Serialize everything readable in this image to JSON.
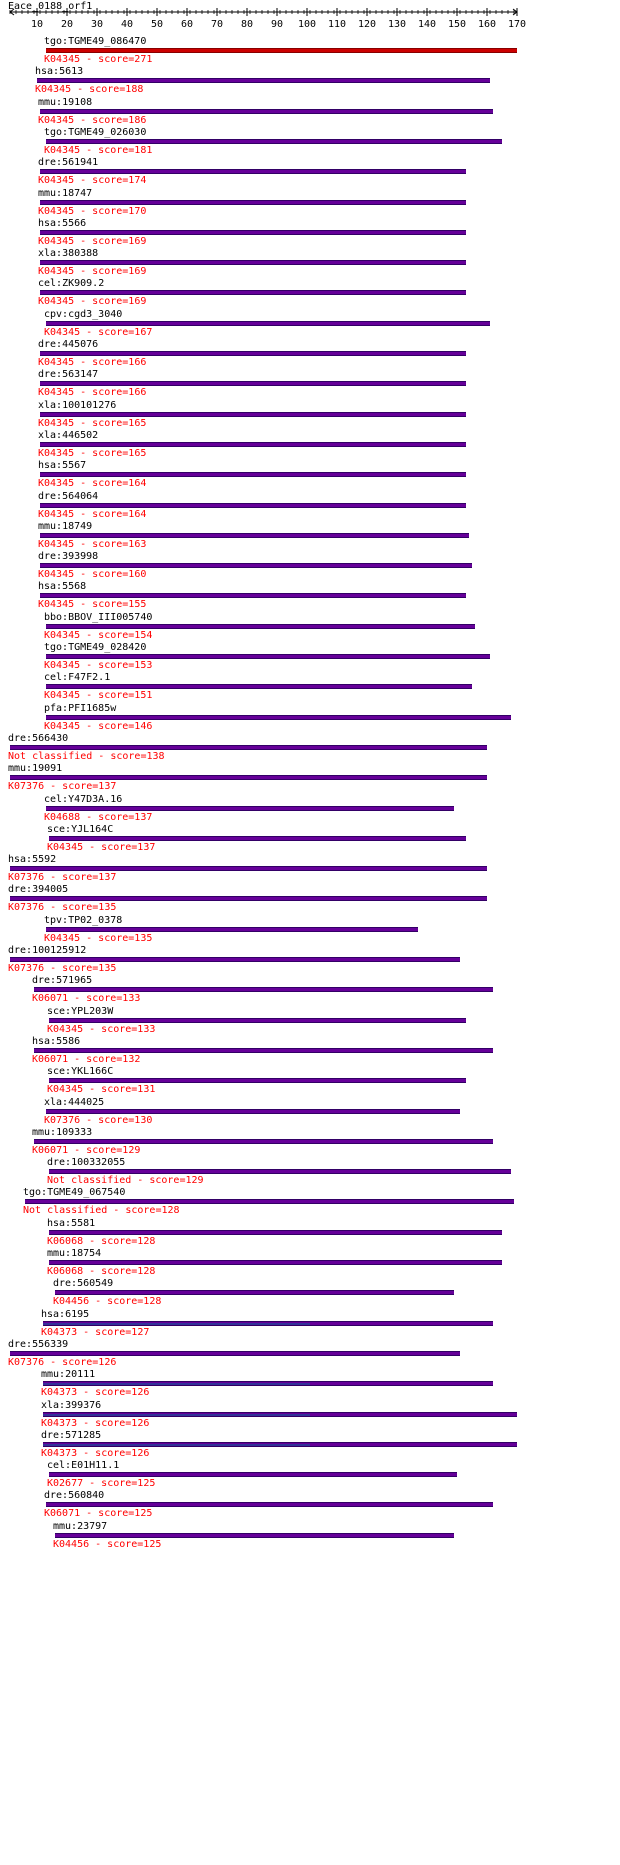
{
  "query_name": "Eace_0188_orf1",
  "ticks": [
    "10",
    "20",
    "30",
    "40",
    "50",
    "60",
    "70",
    "80",
    "90",
    "100",
    "110",
    "120",
    "130",
    "140",
    "150",
    "160",
    "170"
  ],
  "hits": [
    {
      "name": "tgo:TGME49_086470",
      "label": "K04345 - score=271",
      "start": 13,
      "end": 170,
      "top": true
    },
    {
      "name": "hsa:5613",
      "label": "K04345 - score=188",
      "start": 10,
      "end": 161
    },
    {
      "name": "mmu:19108",
      "label": "K04345 - score=186",
      "start": 11,
      "end": 162
    },
    {
      "name": "tgo:TGME49_026030",
      "label": "K04345 - score=181",
      "start": 13,
      "end": 165
    },
    {
      "name": "dre:561941",
      "label": "K04345 - score=174",
      "start": 11,
      "end": 153
    },
    {
      "name": "mmu:18747",
      "label": "K04345 - score=170",
      "start": 11,
      "end": 153
    },
    {
      "name": "hsa:5566",
      "label": "K04345 - score=169",
      "start": 11,
      "end": 153
    },
    {
      "name": "xla:380388",
      "label": "K04345 - score=169",
      "start": 11,
      "end": 153
    },
    {
      "name": "cel:ZK909.2",
      "label": "K04345 - score=169",
      "start": 11,
      "end": 153
    },
    {
      "name": "cpv:cgd3_3040",
      "label": "K04345 - score=167",
      "start": 13,
      "end": 161
    },
    {
      "name": "dre:445076",
      "label": "K04345 - score=166",
      "start": 11,
      "end": 153
    },
    {
      "name": "dre:563147",
      "label": "K04345 - score=166",
      "start": 11,
      "end": 153
    },
    {
      "name": "xla:100101276",
      "label": "K04345 - score=165",
      "start": 11,
      "end": 153
    },
    {
      "name": "xla:446502",
      "label": "K04345 - score=165",
      "start": 11,
      "end": 153
    },
    {
      "name": "hsa:5567",
      "label": "K04345 - score=164",
      "start": 11,
      "end": 153
    },
    {
      "name": "dre:564064",
      "label": "K04345 - score=164",
      "start": 11,
      "end": 153
    },
    {
      "name": "mmu:18749",
      "label": "K04345 - score=163",
      "start": 11,
      "end": 154
    },
    {
      "name": "dre:393998",
      "label": "K04345 - score=160",
      "start": 11,
      "end": 155
    },
    {
      "name": "hsa:5568",
      "label": "K04345 - score=155",
      "start": 11,
      "end": 153
    },
    {
      "name": "bbo:BBOV_III005740",
      "label": "K04345 - score=154",
      "start": 13,
      "end": 156
    },
    {
      "name": "tgo:TGME49_028420",
      "label": "K04345 - score=153",
      "start": 13,
      "end": 161
    },
    {
      "name": "cel:F47F2.1",
      "label": "K04345 - score=151",
      "start": 13,
      "end": 155
    },
    {
      "name": "pfa:PFI1685w",
      "label": "K04345 - score=146",
      "start": 13,
      "end": 168
    },
    {
      "name": "dre:566430",
      "label": "Not classified - score=138",
      "start": 1,
      "end": 160
    },
    {
      "name": "mmu:19091",
      "label": "K07376 - score=137",
      "start": 1,
      "end": 160
    },
    {
      "name": "cel:Y47D3A.16",
      "label": "K04688 - score=137",
      "start": 13,
      "end": 149
    },
    {
      "name": "sce:YJL164C",
      "label": "K04345 - score=137",
      "start": 14,
      "end": 153
    },
    {
      "name": "hsa:5592",
      "label": "K07376 - score=137",
      "start": 1,
      "end": 160
    },
    {
      "name": "dre:394005",
      "label": "K07376 - score=135",
      "start": 1,
      "end": 160
    },
    {
      "name": "tpv:TP02_0378",
      "label": "K04345 - score=135",
      "start": 13,
      "end": 137
    },
    {
      "name": "dre:100125912",
      "label": "K07376 - score=135",
      "start": 1,
      "end": 151
    },
    {
      "name": "dre:571965",
      "label": "K06071 - score=133",
      "start": 9,
      "end": 162
    },
    {
      "name": "sce:YPL203W",
      "label": "K04345 - score=133",
      "start": 14,
      "end": 153
    },
    {
      "name": "hsa:5586",
      "label": "K06071 - score=132",
      "start": 9,
      "end": 162
    },
    {
      "name": "sce:YKL166C",
      "label": "K04345 - score=131",
      "start": 14,
      "end": 153
    },
    {
      "name": "xla:444025",
      "label": "K07376 - score=130",
      "start": 13,
      "end": 151
    },
    {
      "name": "mmu:109333",
      "label": "K06071 - score=129",
      "start": 9,
      "end": 162
    },
    {
      "name": "dre:100332055",
      "label": "Not classified - score=129",
      "start": 14,
      "end": 168
    },
    {
      "name": "tgo:TGME49_067540",
      "label": "Not classified - score=128",
      "start": 6,
      "end": 169
    },
    {
      "name": "hsa:5581",
      "label": "K06068 - score=128",
      "start": 14,
      "end": 165
    },
    {
      "name": "mmu:18754",
      "label": "K06068 - score=128",
      "start": 14,
      "end": 165
    },
    {
      "name": "dre:560549",
      "label": "K04456 - score=128",
      "start": 16,
      "end": 149
    },
    {
      "name": "hsa:6195",
      "label": "K04373 - score=127",
      "start": 12,
      "end": 162,
      "sub_end": 101
    },
    {
      "name": "dre:556339",
      "label": "K07376 - score=126",
      "start": 1,
      "end": 151
    },
    {
      "name": "mmu:20111",
      "label": "K04373 - score=126",
      "start": 12,
      "end": 162,
      "sub_end": 101
    },
    {
      "name": "xla:399376",
      "label": "K04373 - score=126",
      "start": 12,
      "end": 170,
      "sub_end": 101
    },
    {
      "name": "dre:571285",
      "label": "K04373 - score=126",
      "start": 12,
      "end": 170,
      "sub_end": 101
    },
    {
      "name": "cel:E01H11.1",
      "label": "K02677 - score=125",
      "start": 14,
      "end": 150
    },
    {
      "name": "dre:560840",
      "label": "K06071 - score=125",
      "start": 13,
      "end": 162
    },
    {
      "name": "mmu:23797",
      "label": "K04456 - score=125",
      "start": 16,
      "end": 149
    }
  ]
}
